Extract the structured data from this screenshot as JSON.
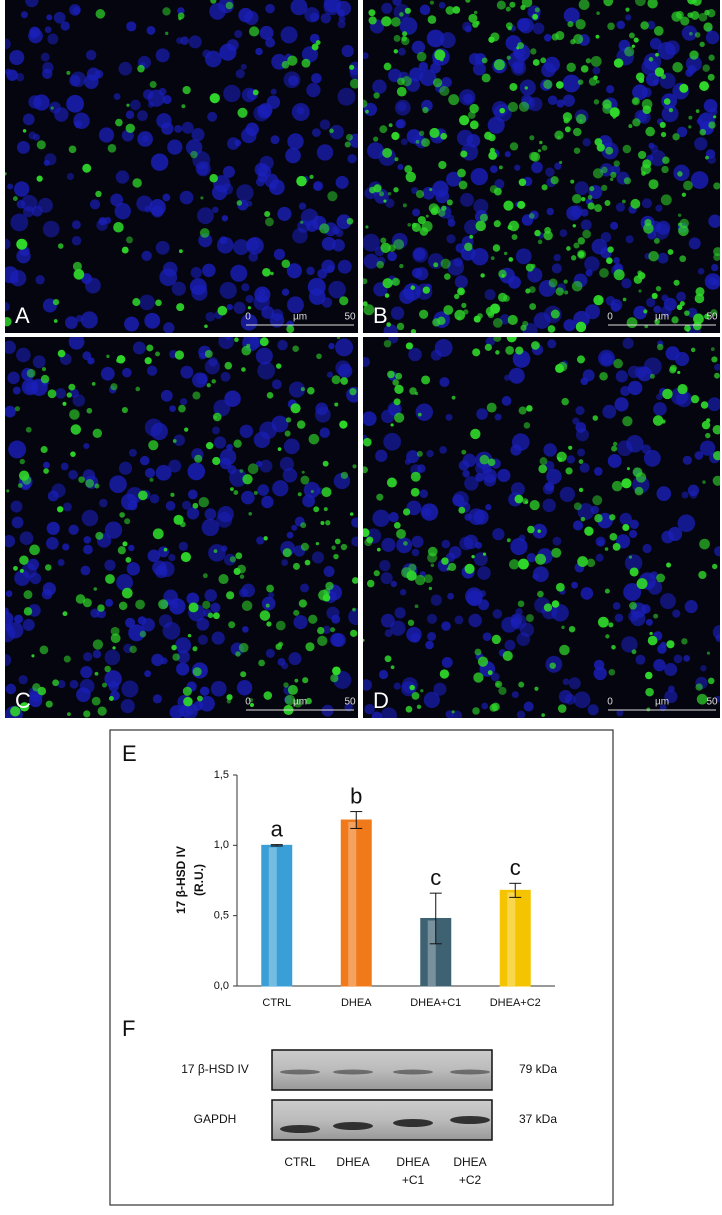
{
  "panels": [
    {
      "label": "A",
      "scale": [
        "0",
        "µm",
        "50"
      ]
    },
    {
      "label": "B",
      "scale": [
        "0",
        "µm",
        "50"
      ]
    },
    {
      "label": "C",
      "scale": [
        "0",
        "µm",
        "50"
      ]
    },
    {
      "label": "D",
      "scale": [
        "0",
        "µm",
        "50"
      ]
    }
  ],
  "chart_data": {
    "type": "bar",
    "panel_label": "E",
    "y_label": [
      "17 β-HSD IV",
      "(R.U.)"
    ],
    "categories": [
      "CTRL",
      "DHEA",
      "DHEA+C1",
      "DHEA+C2"
    ],
    "values": [
      1.0,
      1.18,
      0.48,
      0.68
    ],
    "errors": [
      0.005,
      0.06,
      0.18,
      0.05
    ],
    "annotations": [
      "a",
      "b",
      "c",
      "c"
    ],
    "colors": [
      "#3a9fd6",
      "#f07a1a",
      "#3f6273",
      "#f5c400"
    ],
    "ylim": [
      0,
      1.5
    ],
    "yticks": [
      {
        "value": 0,
        "label": "0,0"
      },
      {
        "value": 0.5,
        "label": "0,5"
      },
      {
        "value": 1.0,
        "label": "1,0"
      },
      {
        "value": 1.5,
        "label": "1,5"
      }
    ],
    "grid": false
  },
  "blot": {
    "panel_label": "F",
    "rows": [
      {
        "name": "17 β-HSD IV",
        "size": "79 kDa"
      },
      {
        "name": "GAPDH",
        "size": "37 kDa"
      }
    ],
    "lanes": [
      [
        "CTRL"
      ],
      [
        "DHEA"
      ],
      [
        "DHEA",
        "+C1"
      ],
      [
        "DHEA",
        "+C2"
      ]
    ]
  }
}
